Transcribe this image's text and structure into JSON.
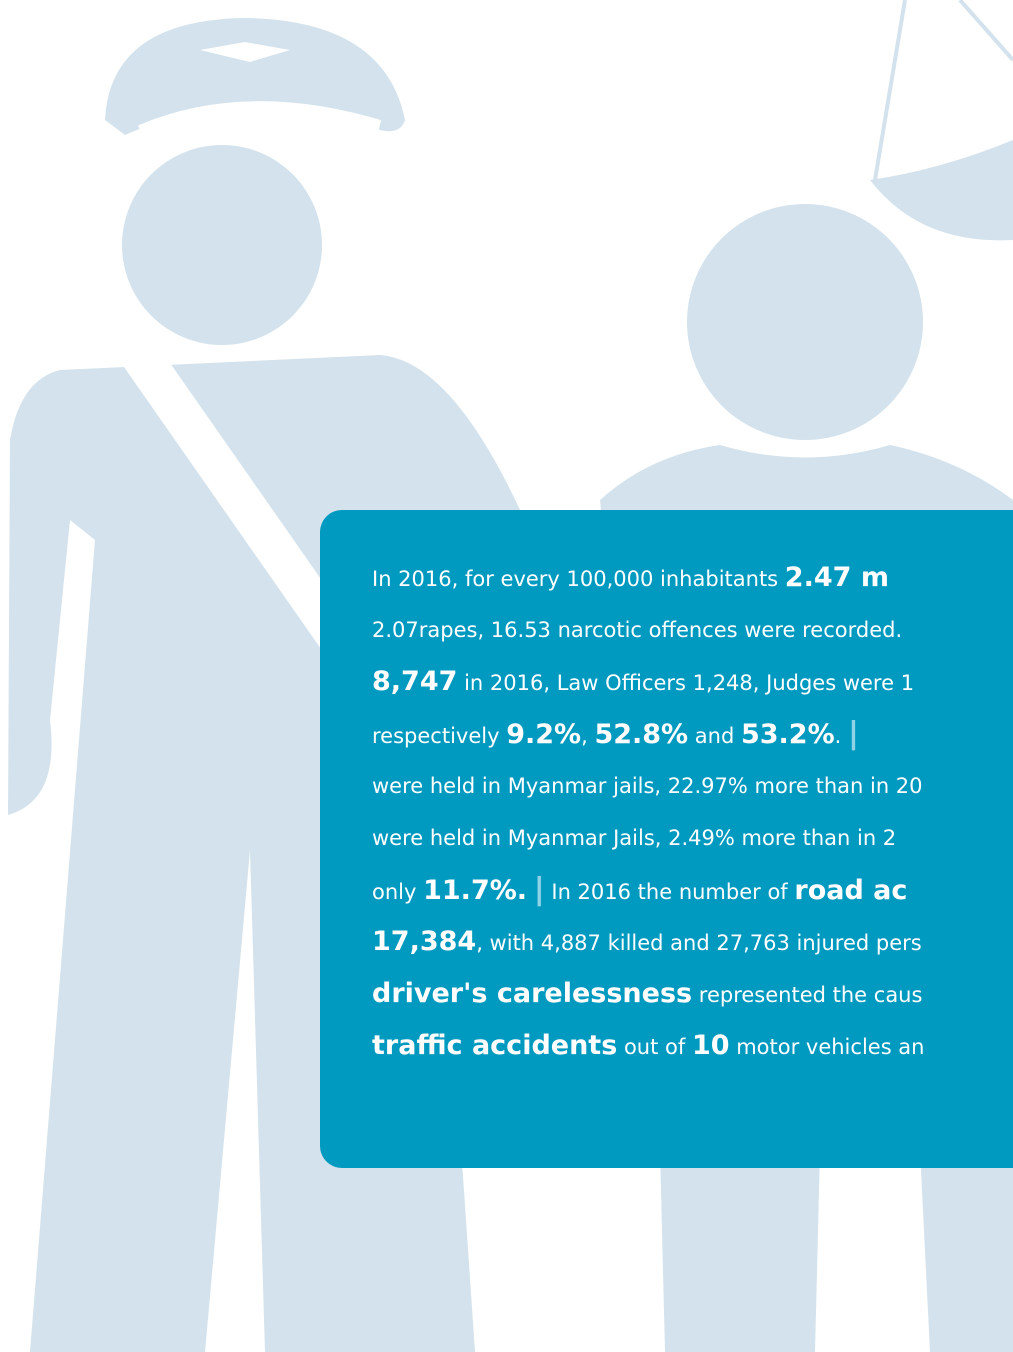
{
  "text_box": {
    "lines": [
      [
        {
          "text": "In 2016, for every 100,000 inhabitants "
        },
        {
          "text": "2.47 m",
          "style": "bold"
        }
      ],
      [
        {
          "text": "2.07rapes, 16.53 narcotic offences were recorded."
        }
      ],
      [
        {
          "text": "8,747",
          "style": "bold"
        },
        {
          "text": " in 2016, Law Officers 1,248, Judges were 1"
        }
      ],
      [
        {
          "text": "respectively "
        },
        {
          "text": "9.2%",
          "style": "bold"
        },
        {
          "text": ", "
        },
        {
          "text": "52.8%",
          "style": "bold"
        },
        {
          "text": " and "
        },
        {
          "text": "53.2%",
          "style": "bold"
        },
        {
          "text": ". "
        },
        {
          "text": "|",
          "style": "separator"
        }
      ],
      [
        {
          "text": "were held in Myanmar jails, 22.97% more than in 20"
        }
      ],
      [
        {
          "text": "were held in Myanmar Jails, 2.49% more than in 2"
        }
      ],
      [
        {
          "text": "only "
        },
        {
          "text": "11.7%.",
          "style": "bold"
        },
        {
          "text": " "
        },
        {
          "text": "|",
          "style": "separator"
        },
        {
          "text": " In 2016 the number of "
        },
        {
          "text": "road ac",
          "style": "bold"
        }
      ],
      [
        {
          "text": "17,384",
          "style": "bold"
        },
        {
          "text": ", with 4,887 killed and 27,763 injured pers"
        }
      ],
      [
        {
          "text": "driver's carelessness",
          "style": "bold"
        },
        {
          "text": " represented the caus"
        }
      ],
      [
        {
          "text": "traffic accidents",
          "style": "bold"
        },
        {
          "text": " out of "
        },
        {
          "text": "10",
          "style": "bold"
        },
        {
          "text": " motor vehicles an"
        }
      ]
    ]
  }
}
